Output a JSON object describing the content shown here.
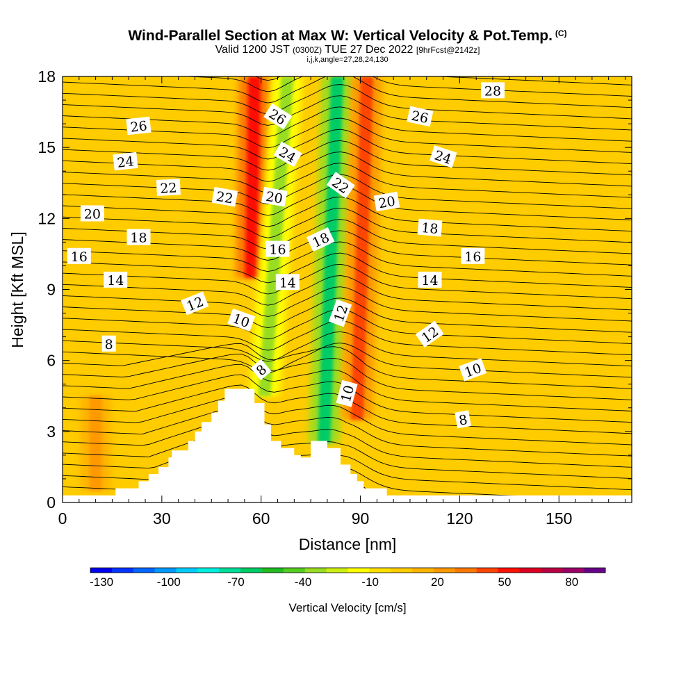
{
  "title": {
    "main": "Wind-Parallel Section at Max W: Vertical Velocity & Pot.Temp.",
    "copyright": "(C)",
    "valid_prefix": "Valid 1200 JST",
    "valid_utc": "(0300Z)",
    "valid_date": "TUE 27 Dec 2022",
    "forecast": "[9hrFcst@2142z]",
    "indices": "i,j,k,angle=27,28,24,130"
  },
  "chart_data": {
    "type": "heatmap",
    "xlabel": "Distance [nm]",
    "ylabel": "Height [Kft MSL]",
    "xlim": [
      0,
      172
    ],
    "ylim": [
      0,
      18
    ],
    "x_ticks": [
      0,
      30,
      60,
      90,
      120,
      150
    ],
    "y_ticks": [
      0,
      3,
      6,
      9,
      12,
      15,
      18
    ],
    "background_value_cm_s": 0,
    "vertical_velocity_bands": [
      {
        "x_center": 58,
        "x_bottom": 57,
        "y_bottom": 9.5,
        "y_top": 18,
        "value": 55
      },
      {
        "x_center": 68,
        "x_bottom": 61,
        "y_bottom": 4.5,
        "y_top": 18,
        "value": -35
      },
      {
        "x_center": 83,
        "x_bottom": 79,
        "y_bottom": 2.5,
        "y_top": 18,
        "value": -60
      },
      {
        "x_center": 92,
        "x_bottom": 89,
        "y_bottom": 3.5,
        "y_top": 18,
        "value": 40
      },
      {
        "x_center": 10,
        "x_bottom": 10,
        "y_bottom": 0.5,
        "y_top": 4.5,
        "value": 22
      }
    ],
    "terrain_profile": [
      [
        16,
        0.3
      ],
      [
        16,
        0.6
      ],
      [
        23,
        0.6
      ],
      [
        23,
        0.9
      ],
      [
        26,
        0.9
      ],
      [
        26,
        1.2
      ],
      [
        29,
        1.2
      ],
      [
        29,
        1.5
      ],
      [
        32,
        1.5
      ],
      [
        32,
        1.9
      ],
      [
        33,
        1.9
      ],
      [
        33,
        2.2
      ],
      [
        38,
        2.2
      ],
      [
        38,
        2.6
      ],
      [
        40,
        2.6
      ],
      [
        40,
        3.0
      ],
      [
        42,
        3.0
      ],
      [
        42,
        3.4
      ],
      [
        45,
        3.4
      ],
      [
        45,
        3.8
      ],
      [
        47,
        3.8
      ],
      [
        47,
        4.3
      ],
      [
        49,
        4.3
      ],
      [
        49,
        4.8
      ],
      [
        58,
        4.8
      ],
      [
        58,
        4.2
      ],
      [
        61,
        4.2
      ],
      [
        61,
        3.3
      ],
      [
        63,
        3.3
      ],
      [
        63,
        2.6
      ],
      [
        66,
        2.6
      ],
      [
        66,
        2.3
      ],
      [
        70,
        2.3
      ],
      [
        70,
        2.0
      ],
      [
        72,
        2.0
      ],
      [
        72,
        1.9
      ],
      [
        75,
        1.9
      ],
      [
        75,
        2.6
      ],
      [
        80,
        2.6
      ],
      [
        80,
        2.3
      ],
      [
        84,
        2.3
      ],
      [
        84,
        1.6
      ],
      [
        87,
        1.6
      ],
      [
        87,
        1.2
      ],
      [
        89,
        1.2
      ],
      [
        89,
        0.9
      ],
      [
        91,
        0.9
      ],
      [
        91,
        0.6
      ],
      [
        98,
        0.6
      ],
      [
        98,
        0.3
      ]
    ],
    "potential_temperature_labels": [
      {
        "text": "28",
        "x": 130,
        "y": 17.4,
        "angle": 0
      },
      {
        "text": "26",
        "x": 23,
        "y": 15.9,
        "angle": -6
      },
      {
        "text": "26",
        "x": 65,
        "y": 16.3,
        "angle": 32
      },
      {
        "text": "26",
        "x": 108,
        "y": 16.3,
        "angle": 12
      },
      {
        "text": "24",
        "x": 19,
        "y": 14.4,
        "angle": -6
      },
      {
        "text": "24",
        "x": 68,
        "y": 14.7,
        "angle": 30
      },
      {
        "text": "24",
        "x": 115,
        "y": 14.6,
        "angle": 18
      },
      {
        "text": "22",
        "x": 32,
        "y": 13.3,
        "angle": -3
      },
      {
        "text": "22",
        "x": 49,
        "y": 12.9,
        "angle": 10
      },
      {
        "text": "22",
        "x": 84,
        "y": 13.4,
        "angle": 35
      },
      {
        "text": "20",
        "x": 9,
        "y": 12.2,
        "angle": 0
      },
      {
        "text": "20",
        "x": 64,
        "y": 12.9,
        "angle": 10
      },
      {
        "text": "20",
        "x": 98,
        "y": 12.7,
        "angle": -10
      },
      {
        "text": "18",
        "x": 23,
        "y": 11.2,
        "angle": 0
      },
      {
        "text": "18",
        "x": 78,
        "y": 11.1,
        "angle": -25
      },
      {
        "text": "18",
        "x": 111,
        "y": 11.6,
        "angle": 5
      },
      {
        "text": "16",
        "x": 5,
        "y": 10.4,
        "angle": 0
      },
      {
        "text": "16",
        "x": 65,
        "y": 10.7,
        "angle": 0
      },
      {
        "text": "16",
        "x": 124,
        "y": 10.4,
        "angle": 0
      },
      {
        "text": "14",
        "x": 16,
        "y": 9.4,
        "angle": 0
      },
      {
        "text": "14",
        "x": 68,
        "y": 9.3,
        "angle": 0
      },
      {
        "text": "14",
        "x": 111,
        "y": 9.4,
        "angle": 0
      },
      {
        "text": "12",
        "x": 40,
        "y": 8.4,
        "angle": -22
      },
      {
        "text": "12",
        "x": 84,
        "y": 8.0,
        "angle": -70
      },
      {
        "text": "12",
        "x": 111,
        "y": 7.1,
        "angle": -35
      },
      {
        "text": "10",
        "x": 54,
        "y": 7.7,
        "angle": 20
      },
      {
        "text": "10",
        "x": 124,
        "y": 5.6,
        "angle": -20
      },
      {
        "text": "10",
        "x": 86,
        "y": 4.6,
        "angle": -75
      },
      {
        "text": "8",
        "x": 14,
        "y": 6.7,
        "angle": 0
      },
      {
        "text": "8",
        "x": 60,
        "y": 5.6,
        "angle": -40
      },
      {
        "text": "8",
        "x": 121,
        "y": 3.5,
        "angle": -10
      }
    ]
  },
  "colorbar": {
    "label": "Vertical Velocity [cm/s]",
    "range": [
      -135,
      95
    ],
    "tick_labels": [
      "-130",
      "-100",
      "-70",
      "-40",
      "-10",
      "20",
      "50",
      "80"
    ],
    "tick_values": [
      -130,
      -100,
      -70,
      -40,
      -10,
      20,
      50,
      80
    ],
    "colors": [
      "#0000ee",
      "#0033ff",
      "#0066ff",
      "#0099ff",
      "#00ccff",
      "#00eedd",
      "#00dd99",
      "#00cc66",
      "#22bb22",
      "#55cc22",
      "#99dd22",
      "#ccee11",
      "#ffff00",
      "#ffe000",
      "#ffcc00",
      "#ffb400",
      "#ff9900",
      "#ff7700",
      "#ff4400",
      "#ff1100",
      "#dd0022",
      "#bb0044",
      "#990066",
      "#660088"
    ]
  }
}
